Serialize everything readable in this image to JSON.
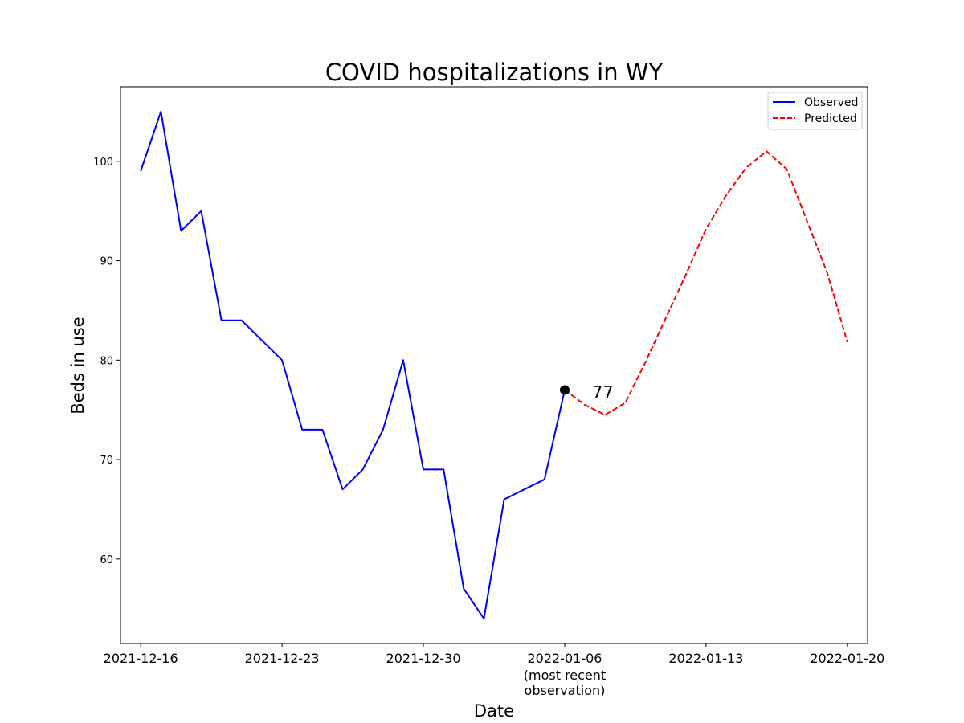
{
  "chart_data": {
    "type": "line",
    "title": "COVID hospitalizations in WY",
    "xlabel": "Date",
    "ylabel": "Beds in use",
    "ylim": [
      51.5,
      107.5
    ],
    "xlim": [
      "2021-12-15",
      "2022-01-21"
    ],
    "x_ticks": [
      "2021-12-16",
      "2021-12-23",
      "2021-12-30",
      "2022-01-06",
      "2022-01-13",
      "2022-01-20"
    ],
    "x_tick_sublabel": {
      "date": "2022-01-06",
      "text": [
        "(most recent",
        "observation)"
      ]
    },
    "y_ticks": [
      60,
      70,
      80,
      90,
      100
    ],
    "grid": false,
    "legend_position": "top-right",
    "series": [
      {
        "name": "Observed",
        "color": "#0000ff",
        "style": "solid",
        "x": [
          "2021-12-16",
          "2021-12-17",
          "2021-12-18",
          "2021-12-19",
          "2021-12-20",
          "2021-12-21",
          "2021-12-22",
          "2021-12-23",
          "2021-12-24",
          "2021-12-25",
          "2021-12-26",
          "2021-12-27",
          "2021-12-28",
          "2021-12-29",
          "2021-12-30",
          "2021-12-31",
          "2022-01-01",
          "2022-01-02",
          "2022-01-03",
          "2022-01-04",
          "2022-01-05",
          "2022-01-06"
        ],
        "values": [
          99,
          105,
          93,
          95,
          84,
          84,
          82,
          80,
          73,
          73,
          67,
          69,
          73,
          80,
          69,
          69,
          57,
          54,
          66,
          67,
          68,
          77
        ]
      },
      {
        "name": "Predicted",
        "color": "#ff0000",
        "style": "dashed",
        "x": [
          "2022-01-06",
          "2022-01-07",
          "2022-01-08",
          "2022-01-09",
          "2022-01-10",
          "2022-01-11",
          "2022-01-12",
          "2022-01-13",
          "2022-01-14",
          "2022-01-15",
          "2022-01-16",
          "2022-01-17",
          "2022-01-18",
          "2022-01-19",
          "2022-01-20"
        ],
        "values": [
          77,
          75.5,
          74.5,
          75.7,
          79.8,
          84.2,
          88.6,
          93.2,
          96.6,
          99.4,
          101.0,
          99.2,
          94.0,
          88.8,
          81.8
        ]
      }
    ],
    "annotation": {
      "x": "2022-01-06",
      "y": 77,
      "text": "77",
      "marker_color": "#000000"
    }
  }
}
